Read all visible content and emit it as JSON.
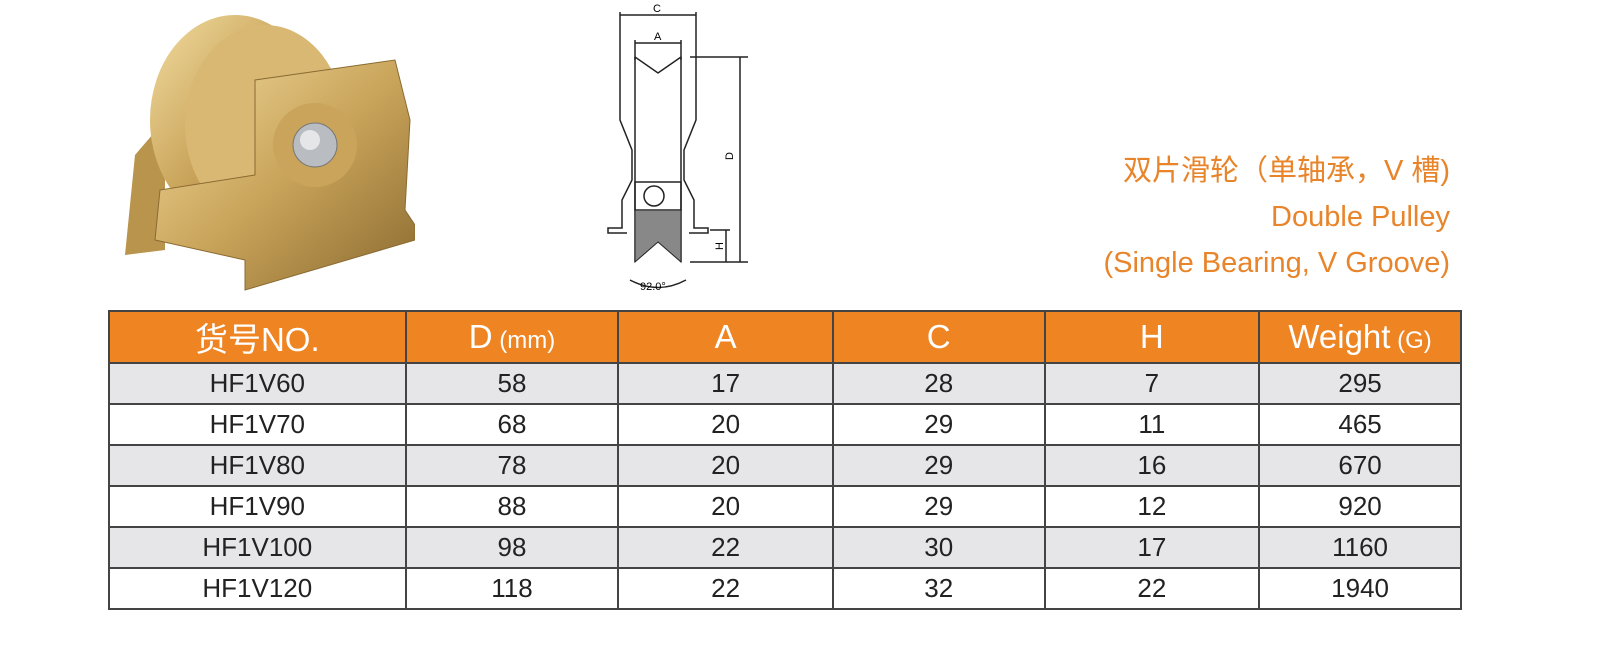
{
  "title": {
    "cn": "双片滑轮（单轴承，V 槽)",
    "en1": "Double Pulley",
    "en2": "(Single Bearing, V Groove)"
  },
  "drawing": {
    "c": "C",
    "a": "A",
    "d": "D",
    "h": "H",
    "angle": "92.0°"
  },
  "table": {
    "headers": [
      {
        "main": "货号NO.",
        "unit": ""
      },
      {
        "main": "D",
        "unit": " (mm)"
      },
      {
        "main": "A",
        "unit": ""
      },
      {
        "main": "C",
        "unit": ""
      },
      {
        "main": "H",
        "unit": ""
      },
      {
        "main": "Weight",
        "unit": " (G)"
      }
    ],
    "rows": [
      [
        "HF1V60",
        "58",
        "17",
        "28",
        "7",
        "295"
      ],
      [
        "HF1V70",
        "68",
        "20",
        "29",
        "11",
        "465"
      ],
      [
        "HF1V80",
        "78",
        "20",
        "29",
        "16",
        "670"
      ],
      [
        "HF1V90",
        "88",
        "20",
        "29",
        "12",
        "920"
      ],
      [
        "HF1V100",
        "98",
        "22",
        "30",
        "17",
        "1160"
      ],
      [
        "HF1V120",
        "118",
        "22",
        "32",
        "22",
        "1940"
      ]
    ]
  },
  "colors": {
    "accent": "#ee8422",
    "row_alt": "#e6e6e8"
  }
}
